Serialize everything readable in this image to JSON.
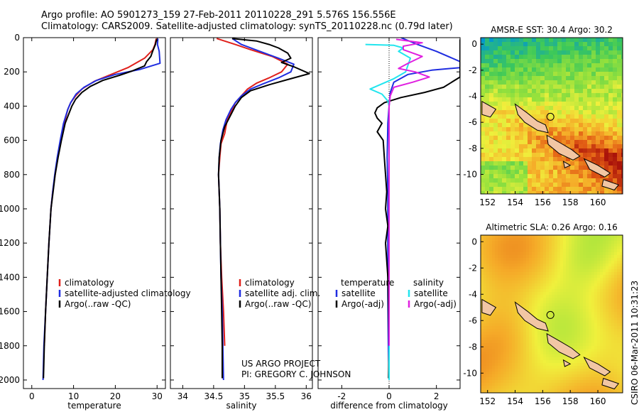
{
  "header": {
    "line1": "Argo profile: AO 5901273_159 27-Feb-2011 20110228_291 5.576S 156.556E",
    "line2": "Climatology: CARS2009. Satellite-adjusted climatology: synTS_20110228.nc (0.79d later)"
  },
  "credit": {
    "project": "US ARGO PROJECT",
    "pi": "PI: GREGORY C. JOHNSON",
    "stamp": "CSIRO 06-Mar-2011 10:31:23"
  },
  "colors": {
    "climatology": "#e0201b",
    "satellite": "#1f2de0",
    "argo": "#000000",
    "satellite_salinity": "#22e5ee",
    "argo_salinity_adj": "#e020e0",
    "land": "#f2c6a4"
  },
  "chart_data": [
    {
      "type": "line",
      "id": "temperature",
      "xlabel": "temperature",
      "xlim": [
        -2,
        32
      ],
      "ylim": [
        2050,
        0
      ],
      "xticks": [
        0,
        10,
        20,
        30
      ],
      "yticks": [
        0,
        200,
        400,
        600,
        800,
        1000,
        1200,
        1400,
        1600,
        1800,
        2000
      ],
      "legend": [
        "climatology",
        "satellite-adjusted climatology",
        "Argo(..raw -QC)"
      ],
      "series": [
        {
          "key": "climatology",
          "points": [
            [
              29.8,
              5
            ],
            [
              29.5,
              40
            ],
            [
              29,
              70
            ],
            [
              27,
              120
            ],
            [
              23,
              175
            ],
            [
              19,
              215
            ],
            [
              15,
              255
            ],
            [
              12,
              300
            ],
            [
              10.5,
              340
            ],
            [
              9.3,
              380
            ],
            [
              8.6,
              420
            ],
            [
              7.8,
              500
            ],
            [
              7.0,
              600
            ],
            [
              6.2,
              700
            ],
            [
              5.6,
              800
            ],
            [
              5.0,
              900
            ],
            [
              4.6,
              1000
            ],
            [
              4.1,
              1200
            ],
            [
              3.7,
              1400
            ],
            [
              3.3,
              1600
            ],
            [
              3.0,
              1800
            ]
          ]
        },
        {
          "key": "satellite",
          "points": [
            [
              30.2,
              5
            ],
            [
              30.1,
              40
            ],
            [
              30.5,
              80
            ],
            [
              30.7,
              150
            ],
            [
              26,
              185
            ],
            [
              20,
              215
            ],
            [
              15.5,
              250
            ],
            [
              12.5,
              290
            ],
            [
              10.6,
              330
            ],
            [
              9.3,
              380
            ],
            [
              8.6,
              420
            ],
            [
              7.6,
              500
            ],
            [
              6.8,
              600
            ],
            [
              6.1,
              700
            ],
            [
              5.5,
              800
            ],
            [
              5,
              900
            ],
            [
              4.6,
              1000
            ],
            [
              4.1,
              1200
            ],
            [
              3.7,
              1400
            ],
            [
              3.3,
              1600
            ],
            [
              2.9,
              1800
            ],
            [
              2.7,
              2000
            ]
          ]
        },
        {
          "key": "argo",
          "points": [
            [
              29.9,
              10
            ],
            [
              29.6,
              40
            ],
            [
              29,
              75
            ],
            [
              28.5,
              110
            ],
            [
              27.5,
              140
            ],
            [
              27,
              165
            ],
            [
              24,
              195
            ],
            [
              21,
              220
            ],
            [
              17,
              250
            ],
            [
              14,
              285
            ],
            [
              12,
              320
            ],
            [
              10.5,
              360
            ],
            [
              9.6,
              400
            ],
            [
              8.8,
              450
            ],
            [
              8,
              500
            ],
            [
              7.1,
              600
            ],
            [
              6.3,
              700
            ],
            [
              5.6,
              800
            ],
            [
              5.1,
              900
            ],
            [
              4.6,
              1000
            ],
            [
              4.1,
              1200
            ],
            [
              3.7,
              1400
            ],
            [
              3.3,
              1600
            ],
            [
              3,
              1800
            ],
            [
              2.8,
              1990
            ]
          ]
        }
      ]
    },
    {
      "type": "line",
      "id": "salinity",
      "xlabel": "salinity",
      "xlim": [
        33.8,
        36.1
      ],
      "ylim": [
        2050,
        0
      ],
      "xticks": [
        34,
        34.5,
        35,
        35.5,
        36
      ],
      "legend": [
        "climatology",
        "satellite adj. clim.",
        "Argo(..raw -QC)"
      ],
      "series": [
        {
          "key": "climatology",
          "points": [
            [
              34.55,
              5
            ],
            [
              34.85,
              40
            ],
            [
              35.1,
              70
            ],
            [
              35.45,
              110
            ],
            [
              35.7,
              155
            ],
            [
              35.6,
              200
            ],
            [
              35.4,
              235
            ],
            [
              35.2,
              265
            ],
            [
              35.05,
              300
            ],
            [
              34.95,
              340
            ],
            [
              34.85,
              380
            ],
            [
              34.8,
              420
            ],
            [
              34.72,
              480
            ],
            [
              34.68,
              560
            ],
            [
              34.62,
              620
            ],
            [
              34.6,
              700
            ],
            [
              34.58,
              800
            ],
            [
              34.59,
              900
            ],
            [
              34.6,
              1000
            ],
            [
              34.61,
              1200
            ],
            [
              34.63,
              1400
            ],
            [
              34.66,
              1600
            ],
            [
              34.68,
              1800
            ]
          ]
        },
        {
          "key": "satellite",
          "points": [
            [
              34.8,
              5
            ],
            [
              34.95,
              40
            ],
            [
              35.25,
              80
            ],
            [
              35.55,
              120
            ],
            [
              35.8,
              155
            ],
            [
              35.75,
              200
            ],
            [
              35.55,
              235
            ],
            [
              35.3,
              270
            ],
            [
              35.1,
              300
            ],
            [
              34.95,
              340
            ],
            [
              34.85,
              380
            ],
            [
              34.78,
              420
            ],
            [
              34.7,
              480
            ],
            [
              34.65,
              540
            ],
            [
              34.61,
              620
            ],
            [
              34.59,
              700
            ],
            [
              34.58,
              800
            ],
            [
              34.59,
              900
            ],
            [
              34.6,
              1000
            ],
            [
              34.61,
              1200
            ],
            [
              34.62,
              1400
            ],
            [
              34.64,
              1600
            ],
            [
              34.65,
              1800
            ],
            [
              34.66,
              2000
            ]
          ]
        },
        {
          "key": "argo",
          "points": [
            [
              34.8,
              5
            ],
            [
              35.2,
              20
            ],
            [
              35.4,
              40
            ],
            [
              35.55,
              60
            ],
            [
              35.7,
              90
            ],
            [
              35.75,
              120
            ],
            [
              35.6,
              145
            ],
            [
              35.8,
              170
            ],
            [
              36.05,
              210
            ],
            [
              35.7,
              245
            ],
            [
              35.4,
              275
            ],
            [
              35.1,
              310
            ],
            [
              34.95,
              350
            ],
            [
              34.85,
              400
            ],
            [
              34.78,
              450
            ],
            [
              34.68,
              520
            ],
            [
              34.62,
              600
            ],
            [
              34.59,
              700
            ],
            [
              34.58,
              800
            ],
            [
              34.59,
              900
            ],
            [
              34.6,
              1000
            ],
            [
              34.61,
              1200
            ],
            [
              34.62,
              1400
            ],
            [
              34.63,
              1600
            ],
            [
              34.64,
              1800
            ],
            [
              34.64,
              1990
            ]
          ]
        }
      ]
    },
    {
      "type": "line",
      "id": "difference",
      "xlabel": "difference from climatology",
      "xlim": [
        -3,
        3
      ],
      "ylim": [
        2050,
        0
      ],
      "xticks": [
        -2,
        0,
        2
      ],
      "legend_groups": [
        {
          "title": "temperature",
          "items": [
            "satellite",
            "Argo(-adj)"
          ]
        },
        {
          "title": "salinity",
          "items": [
            "satellite",
            "Argo(-adj)"
          ]
        }
      ],
      "series": [
        {
          "key": "satellite",
          "points": [
            [
              0.5,
              0
            ],
            [
              1.2,
              40
            ],
            [
              2,
              80
            ],
            [
              3,
              140
            ],
            [
              3,
              175
            ],
            [
              1.8,
              190
            ],
            [
              0.8,
              215
            ],
            [
              0.2,
              260
            ],
            [
              0.05,
              320
            ],
            [
              0,
              400
            ],
            [
              -0.05,
              500
            ],
            [
              -0.08,
              700
            ],
            [
              -0.05,
              900
            ],
            [
              -0.05,
              1200
            ],
            [
              -0.05,
              1500
            ],
            [
              -0.03,
              1800
            ],
            [
              0,
              2000
            ]
          ]
        },
        {
          "key": "argo",
          "points": [
            [
              3,
              10
            ],
            [
              3,
              60
            ],
            [
              3,
              120
            ],
            [
              3,
              230
            ],
            [
              2.3,
              290
            ],
            [
              1.5,
              320
            ],
            [
              0.5,
              350
            ],
            [
              -0.2,
              380
            ],
            [
              -0.5,
              410
            ],
            [
              -0.6,
              440
            ],
            [
              -0.5,
              470
            ],
            [
              -0.3,
              500
            ],
            [
              -0.5,
              550
            ],
            [
              -0.25,
              600
            ],
            [
              -0.2,
              700
            ],
            [
              -0.15,
              800
            ],
            [
              -0.1,
              900
            ],
            [
              -0.15,
              1000
            ],
            [
              -0.05,
              1100
            ],
            [
              -0.15,
              1200
            ],
            [
              -0.05,
              1400
            ],
            [
              -0.02,
              1600
            ],
            [
              0,
              1800
            ],
            [
              -0.02,
              1990
            ]
          ]
        },
        {
          "key": "satellite_salinity",
          "points": [
            [
              -1,
              40
            ],
            [
              0.2,
              45
            ],
            [
              0.6,
              60
            ],
            [
              0.4,
              80
            ],
            [
              0.9,
              120
            ],
            [
              0.8,
              160
            ],
            [
              0.7,
              200
            ],
            [
              0.2,
              240
            ],
            [
              -0.3,
              270
            ],
            [
              -0.8,
              300
            ],
            [
              -0.3,
              330
            ],
            [
              -0.05,
              370
            ],
            [
              0,
              400
            ],
            [
              0,
              500
            ],
            [
              0,
              700
            ],
            [
              0,
              900
            ],
            [
              0,
              1100
            ],
            [
              0,
              1300
            ],
            [
              0,
              1500
            ],
            [
              0,
              1700
            ],
            [
              0,
              1900
            ],
            [
              0,
              2000
            ]
          ]
        },
        {
          "key": "argo_salinity_adj",
          "points": [
            [
              0.3,
              10
            ],
            [
              1.4,
              30
            ],
            [
              0.6,
              50
            ],
            [
              0.6,
              70
            ],
            [
              1.0,
              90
            ],
            [
              1.4,
              110
            ],
            [
              0.8,
              150
            ],
            [
              0.4,
              180
            ],
            [
              1.1,
              200
            ],
            [
              1.7,
              230
            ],
            [
              1.0,
              260
            ],
            [
              0.2,
              290
            ],
            [
              0.05,
              340
            ],
            [
              0,
              400
            ],
            [
              0,
              600
            ],
            [
              0,
              800
            ],
            [
              0,
              1000
            ],
            [
              0,
              1200
            ],
            [
              0,
              1400
            ],
            [
              0,
              1600
            ],
            [
              0,
              1800
            ]
          ]
        }
      ]
    },
    {
      "type": "heatmap",
      "id": "sst_map",
      "title": "AMSR-E SST: 30.4  Argo: 30.2",
      "xlim": [
        151.5,
        161.8
      ],
      "ylim": [
        -11.5,
        0.5
      ],
      "xticks": [
        152,
        154,
        156,
        158,
        160
      ],
      "yticks": [
        0,
        -2,
        -4,
        -6,
        -8,
        -10
      ],
      "argo_position": [
        156.556,
        -5.576
      ]
    },
    {
      "type": "heatmap",
      "id": "sla_map",
      "title": "Altimetric SLA: 0.26  Argo: 0.16",
      "xlim": [
        151.5,
        161.8
      ],
      "ylim": [
        -11.5,
        0.5
      ],
      "xticks": [
        152,
        154,
        156,
        158,
        160
      ],
      "yticks": [
        0,
        -2,
        -4,
        -6,
        -8,
        -10
      ],
      "argo_position": [
        156.556,
        -5.576
      ]
    }
  ]
}
